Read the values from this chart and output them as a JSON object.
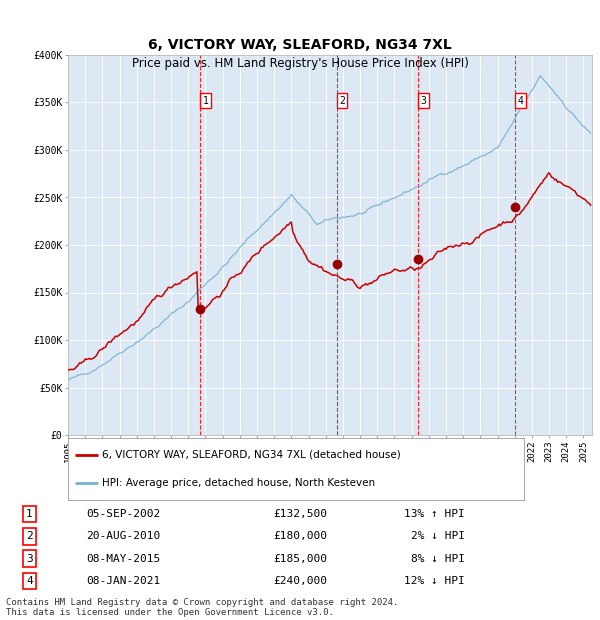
{
  "title": "6, VICTORY WAY, SLEAFORD, NG34 7XL",
  "subtitle": "Price paid vs. HM Land Registry's House Price Index (HPI)",
  "title_fontsize": 10,
  "subtitle_fontsize": 8.5,
  "plot_bg_color": "#dce9f5",
  "ylim": [
    0,
    400000
  ],
  "yticks": [
    0,
    50000,
    100000,
    150000,
    200000,
    250000,
    300000,
    350000,
    400000
  ],
  "ytick_labels": [
    "£0",
    "£50K",
    "£100K",
    "£150K",
    "£200K",
    "£250K",
    "£300K",
    "£350K",
    "£400K"
  ],
  "legend_house": "6, VICTORY WAY, SLEAFORD, NG34 7XL (detached house)",
  "legend_hpi": "HPI: Average price, detached house, North Kesteven",
  "house_color": "#cc0000",
  "hpi_color": "#7ab0d4",
  "sale_marker_color": "#990000",
  "sale_points": [
    {
      "label": "1",
      "date": "05-SEP-2002",
      "price": 132500,
      "pct": "13%",
      "dir": "↑",
      "x": 2002.68
    },
    {
      "label": "2",
      "date": "20-AUG-2010",
      "price": 180000,
      "pct": "2%",
      "dir": "↓",
      "x": 2010.63
    },
    {
      "label": "3",
      "date": "08-MAY-2015",
      "price": 185000,
      "pct": "8%",
      "dir": "↓",
      "x": 2015.35
    },
    {
      "label": "4",
      "date": "08-JAN-2021",
      "price": 240000,
      "pct": "12%",
      "dir": "↓",
      "x": 2021.02
    }
  ],
  "footer": "Contains HM Land Registry data © Crown copyright and database right 2024.\nThis data is licensed under the Open Government Licence v3.0.",
  "footer_fontsize": 6.5
}
